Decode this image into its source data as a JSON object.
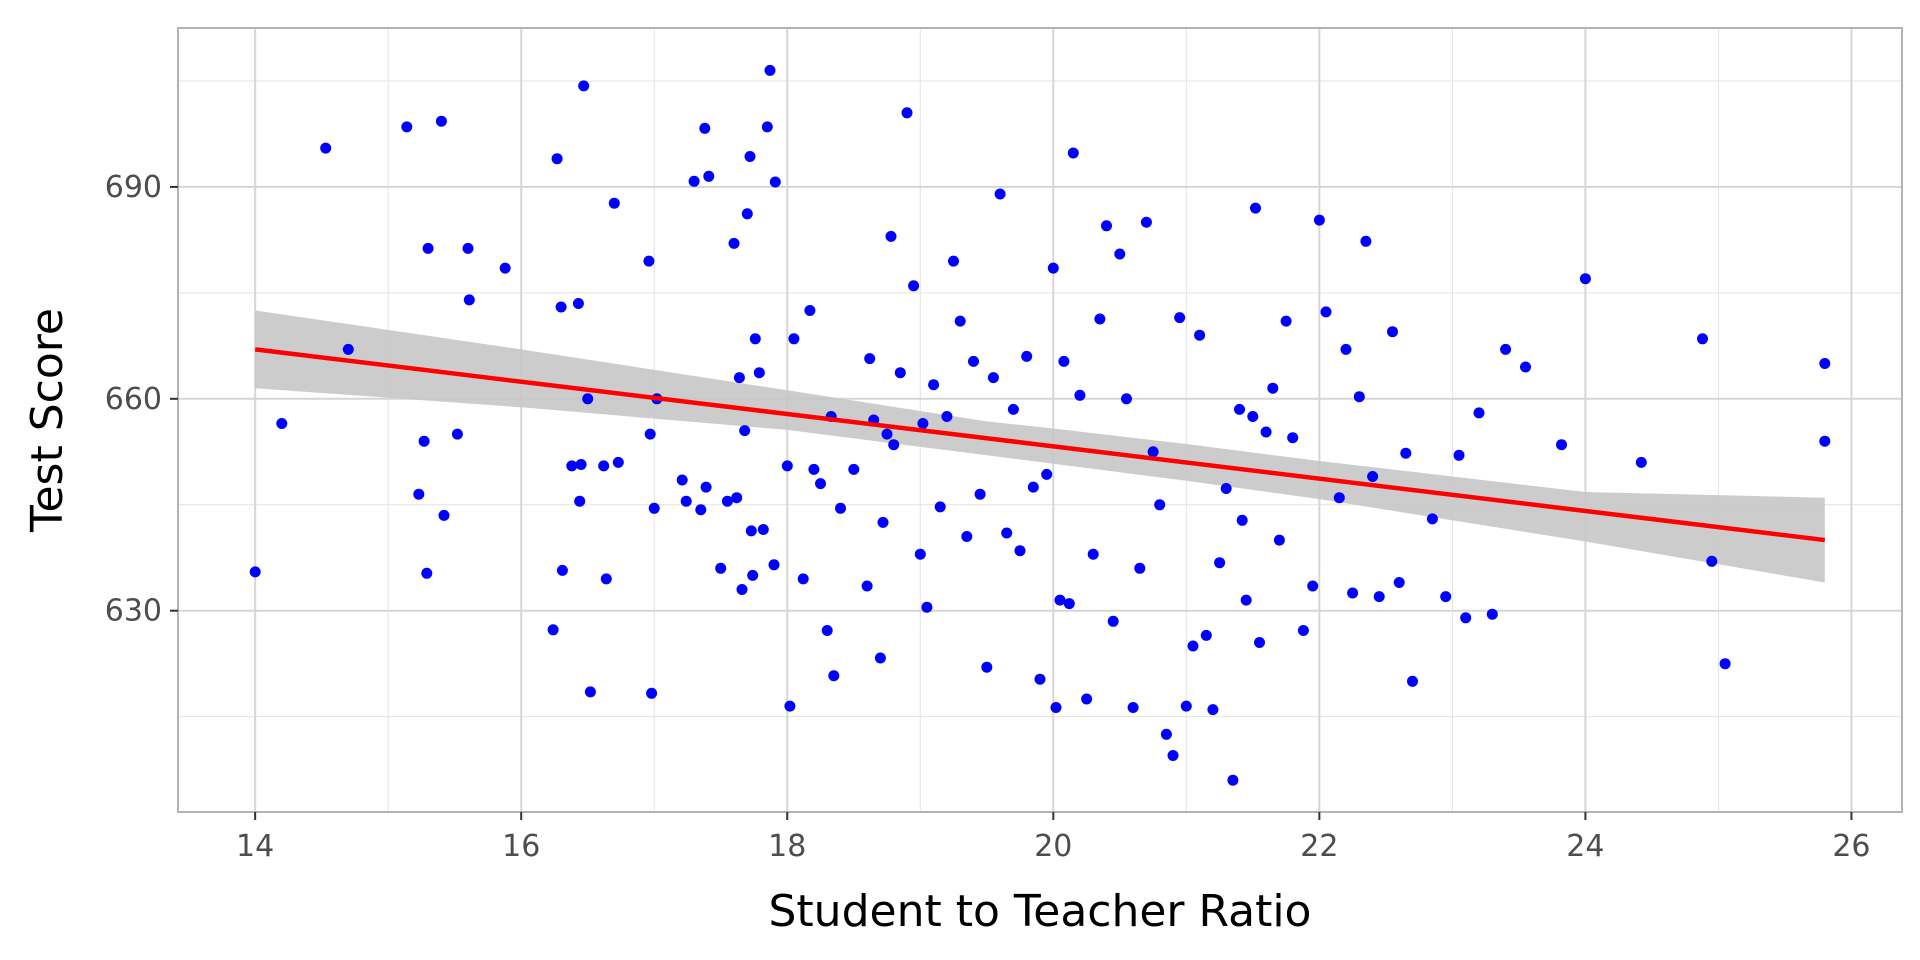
{
  "chart_data": {
    "type": "scatter",
    "xlabel": "Student to Teacher Ratio",
    "ylabel": "Test Score",
    "xlim": [
      13.42,
      26.38
    ],
    "ylim": [
      601.5,
      712.5
    ],
    "x_ticks": [
      "14",
      "16",
      "18",
      "20",
      "22",
      "24",
      "26"
    ],
    "x_tick_values": [
      14,
      16,
      18,
      20,
      22,
      24,
      26
    ],
    "y_ticks": [
      "630",
      "660",
      "690"
    ],
    "y_tick_values": [
      630,
      660,
      690
    ],
    "grid": true,
    "colors": {
      "points": "#0000ff",
      "line": "#ff0000",
      "band": "#c7c7c7",
      "panel_border": "#b3b3b3",
      "grid": "#e3e3e3"
    },
    "fit_line": {
      "x": [
        14.0,
        25.8
      ],
      "y": [
        667.0,
        640.0
      ]
    },
    "confidence_band": {
      "x": [
        14.0,
        16.0,
        18.0,
        19.5,
        20.0,
        21.0,
        22.0,
        24.0,
        25.8
      ],
      "lower": [
        661.5,
        658.8,
        655.6,
        652.0,
        650.8,
        648.4,
        645.8,
        639.8,
        634.0
      ],
      "upper": [
        672.5,
        667.0,
        661.2,
        656.8,
        655.8,
        653.6,
        651.2,
        646.8,
        646.0
      ]
    },
    "points": {
      "x": [
        14.0,
        14.2,
        14.53,
        14.7,
        15.14,
        15.23,
        15.27,
        15.29,
        15.3,
        15.4,
        15.42,
        15.52,
        15.6,
        15.61,
        15.88,
        16.24,
        16.27,
        16.3,
        16.31,
        16.38,
        16.43,
        16.44,
        16.45,
        16.47,
        16.5,
        16.52,
        16.62,
        16.64,
        16.7,
        16.73,
        16.96,
        16.97,
        16.98,
        17.0,
        17.02,
        17.21,
        17.24,
        17.3,
        17.35,
        17.38,
        17.39,
        17.41,
        17.5,
        17.55,
        17.6,
        17.62,
        17.64,
        17.66,
        17.68,
        17.7,
        17.72,
        17.73,
        17.74,
        17.76,
        17.79,
        17.82,
        17.85,
        17.87,
        17.9,
        17.91,
        18.0,
        18.02,
        18.05,
        18.12,
        18.17,
        18.2,
        18.25,
        18.3,
        18.33,
        18.35,
        18.4,
        18.5,
        18.6,
        18.62,
        18.65,
        18.7,
        18.72,
        18.75,
        18.78,
        18.8,
        18.85,
        18.9,
        18.95,
        19.0,
        19.02,
        19.05,
        19.1,
        19.15,
        19.2,
        19.25,
        19.3,
        19.35,
        19.4,
        19.45,
        19.5,
        19.55,
        19.6,
        19.65,
        19.7,
        19.75,
        19.8,
        19.85,
        19.9,
        19.95,
        20.0,
        20.02,
        20.05,
        20.08,
        20.12,
        20.15,
        20.2,
        20.25,
        20.3,
        20.35,
        20.4,
        20.45,
        20.5,
        20.55,
        20.6,
        20.65,
        20.7,
        20.75,
        20.8,
        20.85,
        20.9,
        20.95,
        21.0,
        21.05,
        21.1,
        21.15,
        21.2,
        21.25,
        21.3,
        21.35,
        21.4,
        21.42,
        21.45,
        21.5,
        21.52,
        21.55,
        21.6,
        21.65,
        21.7,
        21.75,
        21.8,
        21.88,
        21.95,
        22.0,
        22.05,
        22.15,
        22.2,
        22.25,
        22.3,
        22.35,
        22.4,
        22.45,
        22.55,
        22.6,
        22.65,
        22.7,
        22.85,
        22.95,
        23.05,
        23.1,
        23.2,
        23.3,
        23.4,
        23.55,
        23.82,
        24.0,
        24.42,
        24.88,
        24.95,
        25.05,
        25.8,
        25.8
      ],
      "y": [
        635.5,
        656.5,
        695.5,
        667.0,
        698.5,
        646.5,
        654.0,
        635.3,
        681.3,
        699.3,
        643.5,
        655.0,
        681.3,
        674.0,
        678.5,
        627.3,
        694.0,
        673.0,
        635.7,
        650.5,
        673.5,
        645.5,
        650.7,
        704.3,
        660.0,
        618.5,
        650.5,
        634.5,
        687.7,
        651.0,
        679.5,
        655.0,
        618.3,
        644.5,
        660.0,
        648.5,
        645.5,
        690.8,
        644.3,
        698.3,
        647.5,
        691.5,
        636.0,
        645.5,
        682.0,
        646.0,
        663.0,
        633.0,
        655.5,
        686.2,
        694.3,
        641.3,
        635.0,
        668.5,
        663.7,
        641.5,
        698.5,
        706.5,
        636.5,
        690.7,
        650.5,
        616.5,
        668.5,
        634.5,
        672.5,
        650.0,
        648.0,
        627.2,
        657.5,
        620.8,
        644.5,
        650.0,
        633.5,
        665.7,
        657.0,
        623.3,
        642.5,
        655.0,
        683.0,
        653.5,
        663.7,
        700.5,
        676.0,
        638.0,
        656.5,
        630.5,
        662.0,
        644.7,
        657.5,
        679.5,
        671.0,
        640.5,
        665.3,
        646.5,
        622.0,
        663.0,
        689.0,
        641.0,
        658.5,
        638.5,
        666.0,
        647.5,
        620.3,
        649.3,
        678.5,
        616.3,
        631.5,
        665.3,
        631.0,
        694.8,
        660.5,
        617.5,
        638.0,
        671.3,
        684.5,
        628.5,
        680.5,
        660.0,
        616.3,
        636.0,
        685.0,
        652.5,
        645.0,
        612.5,
        609.5,
        671.5,
        616.5,
        625.0,
        669.0,
        626.5,
        616.0,
        636.8,
        647.3,
        606.0,
        658.5,
        642.8,
        631.5,
        657.5,
        687.0,
        625.5,
        655.3,
        661.5,
        640.0,
        671.0,
        654.5,
        627.2,
        633.5,
        685.3,
        672.3,
        646.0,
        667.0,
        632.5,
        660.3,
        682.3,
        649.0,
        632.0,
        669.5,
        634.0,
        652.3,
        620.0,
        643.0,
        632.0,
        652.0,
        629.0,
        658.0,
        629.5,
        667.0,
        664.5,
        653.5,
        677.0,
        651.0,
        668.5,
        637.0,
        622.5,
        665.0,
        654.0
      ]
    }
  }
}
